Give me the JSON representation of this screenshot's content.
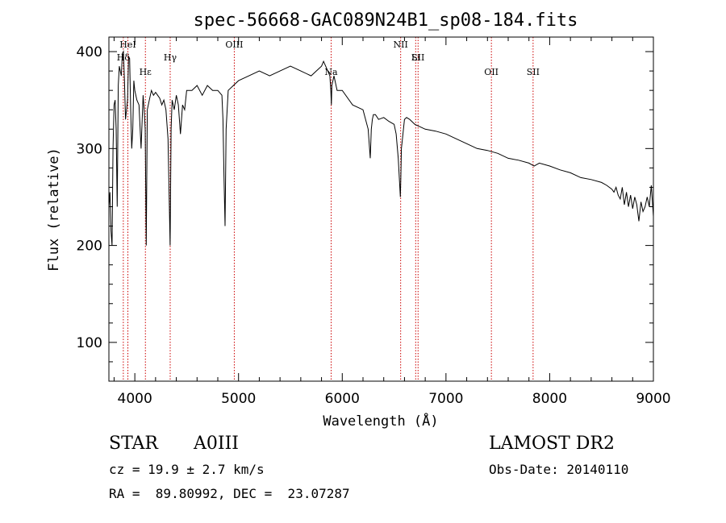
{
  "chart_data": {
    "type": "line",
    "title": "spec-56668-GAC089N24B1_sp08-184.fits",
    "xlabel": "Wavelength (Å)",
    "ylabel": "Flux (relative)",
    "xlim": [
      3750,
      9000
    ],
    "ylim": [
      60,
      415
    ],
    "xticks": [
      4000,
      5000,
      6000,
      7000,
      8000,
      9000
    ],
    "xticklabels": [
      "4000",
      "5000",
      "6000",
      "7000",
      "8000",
      "9000"
    ],
    "yticks": [
      100,
      200,
      300,
      400
    ],
    "yticklabels": [
      "100",
      "200",
      "300",
      "400"
    ],
    "grid": false,
    "legend": "none",
    "line_color": "#000000",
    "marker_line_color": "#cc0000",
    "series": [
      {
        "x": [
          3750,
          3760,
          3770,
          3780,
          3790,
          3800,
          3810,
          3820,
          3830,
          3840,
          3850,
          3860,
          3870,
          3880,
          3890,
          3900,
          3910,
          3920,
          3930,
          3940,
          3950,
          3960,
          3970,
          3980,
          3990,
          4000,
          4020,
          4040,
          4060,
          4080,
          4090,
          4100,
          4110,
          4120,
          4140,
          4160,
          4180,
          4200,
          4220,
          4240,
          4260,
          4280,
          4300,
          4320,
          4330,
          4340,
          4350,
          4360,
          4380,
          4400,
          4420,
          4440,
          4460,
          4480,
          4500,
          4550,
          4600,
          4650,
          4700,
          4750,
          4800,
          4840,
          4850,
          4860,
          4870,
          4880,
          4900,
          4950,
          5000,
          5100,
          5200,
          5300,
          5400,
          5500,
          5600,
          5700,
          5750,
          5800,
          5820,
          5840,
          5860,
          5880,
          5890,
          5895,
          5900,
          5920,
          5950,
          6000,
          6100,
          6200,
          6250,
          6270,
          6280,
          6290,
          6300,
          6320,
          6350,
          6400,
          6450,
          6500,
          6520,
          6540,
          6550,
          6560,
          6565,
          6570,
          6580,
          6600,
          6620,
          6650,
          6700,
          6800,
          6900,
          7000,
          7100,
          7200,
          7300,
          7400,
          7500,
          7600,
          7700,
          7800,
          7850,
          7900,
          8000,
          8100,
          8200,
          8300,
          8400,
          8500,
          8550,
          8600,
          8620,
          8640,
          8660,
          8680,
          8700,
          8720,
          8740,
          8760,
          8780,
          8800,
          8820,
          8840,
          8860,
          8880,
          8900,
          8920,
          8940,
          8960,
          8980,
          9000
        ],
        "y": [
          240,
          255,
          215,
          200,
          300,
          345,
          350,
          320,
          240,
          365,
          385,
          380,
          375,
          398,
          400,
          370,
          330,
          340,
          350,
          395,
          393,
          340,
          300,
          320,
          370,
          360,
          350,
          345,
          300,
          355,
          340,
          320,
          200,
          340,
          350,
          360,
          355,
          358,
          355,
          352,
          345,
          350,
          340,
          310,
          255,
          200,
          320,
          350,
          340,
          355,
          345,
          315,
          345,
          340,
          360,
          360,
          365,
          355,
          365,
          360,
          360,
          355,
          330,
          270,
          220,
          320,
          360,
          365,
          370,
          375,
          380,
          375,
          380,
          385,
          380,
          375,
          380,
          385,
          390,
          385,
          380,
          375,
          360,
          345,
          365,
          375,
          360,
          360,
          345,
          340,
          320,
          290,
          320,
          330,
          335,
          335,
          330,
          332,
          328,
          325,
          315,
          290,
          270,
          250,
          270,
          300,
          310,
          330,
          332,
          330,
          325,
          320,
          318,
          315,
          310,
          305,
          300,
          298,
          295,
          290,
          288,
          285,
          282,
          285,
          282,
          278,
          275,
          270,
          268,
          265,
          262,
          258,
          255,
          260,
          252,
          248,
          260,
          242,
          255,
          240,
          252,
          238,
          250,
          242,
          225,
          245,
          235,
          240,
          250,
          240,
          262,
          230
        ]
      }
    ],
    "line_markers": [
      {
        "x": 3889,
        "label": "Hδ"
      },
      {
        "x": 3933,
        "label": "HeI"
      },
      {
        "x": 4102,
        "label": "Hε"
      },
      {
        "x": 4341,
        "label": "Hγ"
      },
      {
        "x": 4959,
        "label": "OIII"
      },
      {
        "x": 5893,
        "label": "Na"
      },
      {
        "x": 6563,
        "label": "NII"
      },
      {
        "x": 6708,
        "label": "Li"
      },
      {
        "x": 6731,
        "label": "SII"
      },
      {
        "x": 7438,
        "label": "OII"
      },
      {
        "x": 7840,
        "label": "SII"
      }
    ]
  },
  "info": {
    "class": "STAR",
    "subclass": "A0III",
    "survey": "LAMOST DR2",
    "redshift": "cz = 19.9 ± 2.7 km/s",
    "obs_date": "Obs-Date: 20140110",
    "coords": "RA =  89.80992, DEC =  23.07287"
  }
}
